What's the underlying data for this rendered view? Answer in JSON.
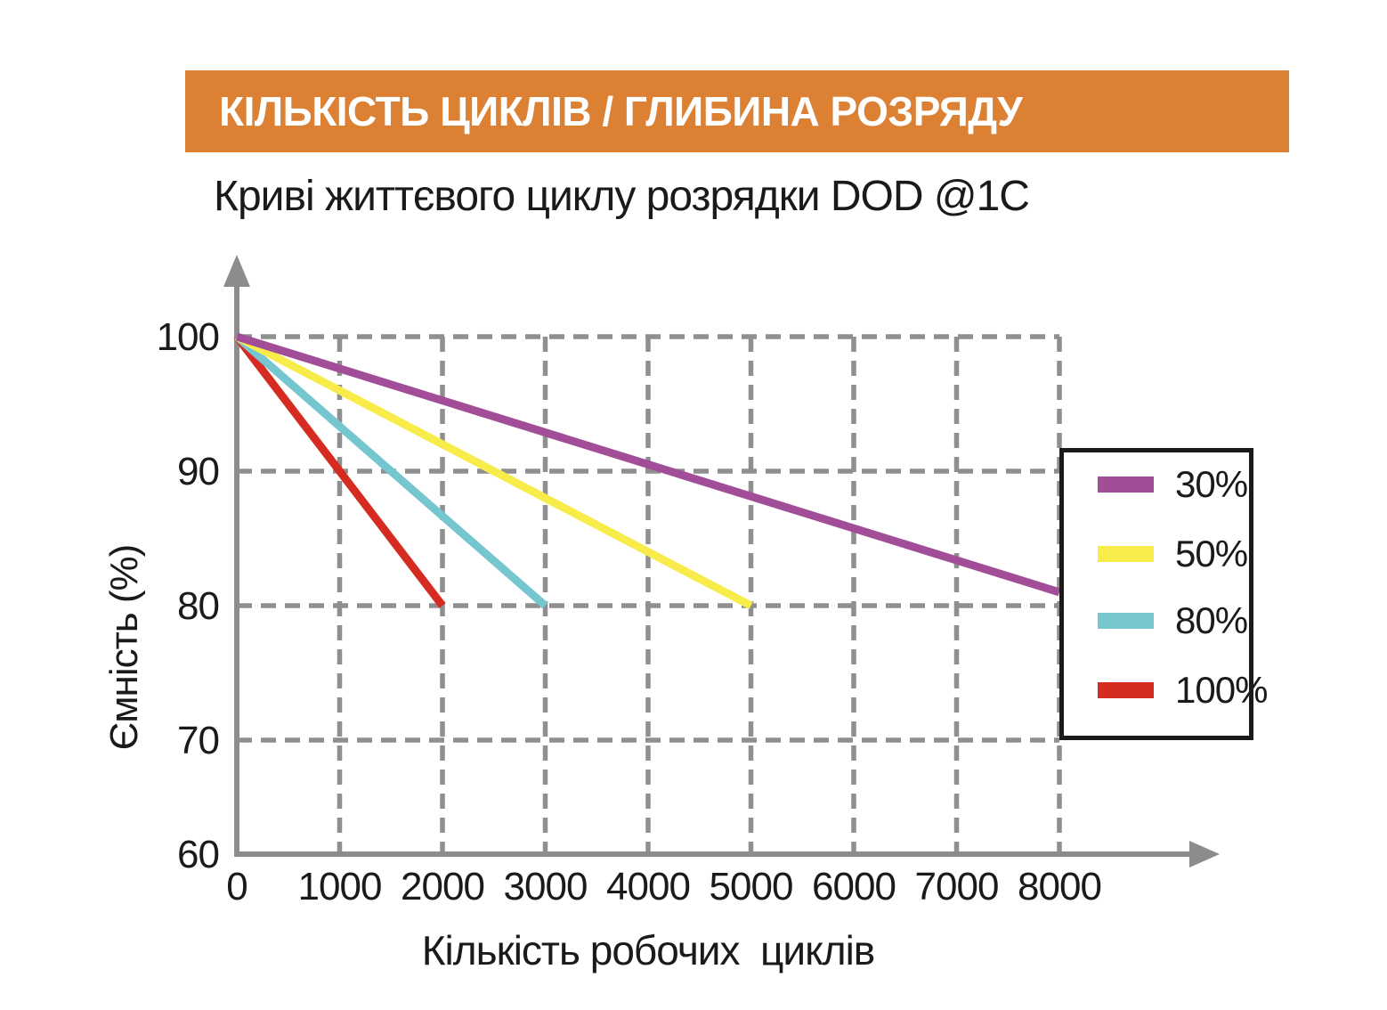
{
  "banner": {
    "title": "КІЛЬКІСТЬ ЦИКЛІВ / ГЛИБИНА РОЗРЯДУ"
  },
  "chart_title": "Криві життєвого циклу розрядки DOD @1C",
  "colors": {
    "banner_bg": "#DC8034",
    "banner_text": "#FFFFFF",
    "text": "#1A1A1A",
    "axis": "#8C8C8C",
    "grid": "#8F8F8F",
    "legend_border": "#1A1A1A"
  },
  "chart_data": {
    "type": "line",
    "title": "Криві життєвого циклу розрядки DOD @1C",
    "xlabel": "Кількість робочих  циклів",
    "ylabel": "Ємність (%)",
    "x_ticks": [
      0,
      1000,
      2000,
      3000,
      4000,
      5000,
      6000,
      7000,
      8000
    ],
    "y_ticks": [
      60,
      70,
      80,
      90,
      100
    ],
    "xlim": [
      0,
      8000
    ],
    "ylim": [
      60,
      100
    ],
    "grid": "dashed",
    "legend_position": "right-overlay",
    "series": [
      {
        "name": "30%",
        "color": "#A24D97",
        "points": [
          [
            0,
            100
          ],
          [
            8000,
            81
          ]
        ]
      },
      {
        "name": "50%",
        "color": "#F7EC4A",
        "points": [
          [
            0,
            100
          ],
          [
            5000,
            80
          ]
        ]
      },
      {
        "name": "80%",
        "color": "#75C6CF",
        "points": [
          [
            0,
            100
          ],
          [
            3000,
            80
          ]
        ]
      },
      {
        "name": "100%",
        "color": "#D52B21",
        "points": [
          [
            0,
            100
          ],
          [
            2000,
            80
          ]
        ]
      }
    ]
  }
}
